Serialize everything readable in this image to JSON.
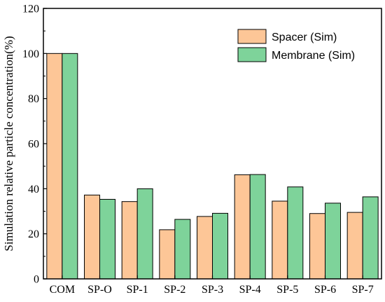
{
  "chart_data": {
    "type": "bar",
    "title": "",
    "xlabel": "",
    "ylabel": "Simulation relative particle concentration(%)",
    "ylim": [
      0,
      120
    ],
    "yticks": [
      0,
      20,
      40,
      60,
      80,
      100,
      120
    ],
    "grid": false,
    "legend_position": "top-right",
    "categories": [
      "COM",
      "SP-O",
      "SP-1",
      "SP-2",
      "SP-3",
      "SP-4",
      "SP-5",
      "SP-6",
      "SP-7"
    ],
    "series": [
      {
        "name": "Spacer (Sim)",
        "color": "#FDC697",
        "values": [
          100,
          37.2,
          34.3,
          21.8,
          27.7,
          46.2,
          34.5,
          29.0,
          29.5
        ]
      },
      {
        "name": "Membrane (Sim)",
        "color": "#7ED39A",
        "values": [
          100,
          35.3,
          40.0,
          26.4,
          29.1,
          46.3,
          40.8,
          33.6,
          36.4
        ]
      }
    ]
  }
}
